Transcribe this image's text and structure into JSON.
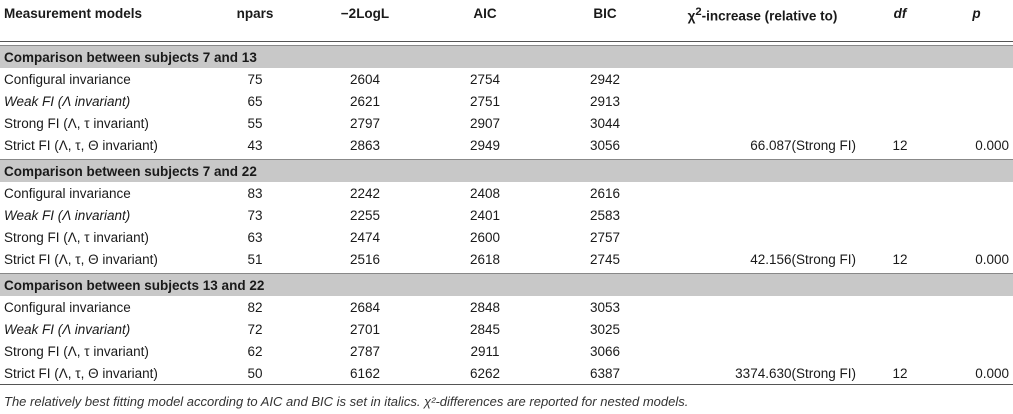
{
  "headers": {
    "model": "Measurement models",
    "npars": "npars",
    "loglik": "−2LogL",
    "aic": "AIC",
    "bic": "BIC",
    "chi_pre": "χ",
    "chi_sup": "2",
    "chi_post": "-increase (relative to)",
    "df": "df",
    "p": "p"
  },
  "groups": [
    {
      "title": "Comparison between subjects 7 and 13",
      "rows": [
        {
          "model": "Configural invariance",
          "npars": "75",
          "loglik": "2604",
          "aic": "2754",
          "bic": "2942",
          "chi": "",
          "df": "",
          "p": ""
        },
        {
          "model": "Weak FI (Λ invariant)",
          "npars": "65",
          "loglik": "2621",
          "aic": "2751",
          "bic": "2913",
          "chi": "",
          "df": "",
          "p": ""
        },
        {
          "model": "Strong FI (Λ, τ invariant)",
          "npars": "55",
          "loglik": "2797",
          "aic": "2907",
          "bic": "3044",
          "chi": "",
          "df": "",
          "p": ""
        },
        {
          "model": "Strict FI (Λ, τ, Θ invariant)",
          "npars": "43",
          "loglik": "2863",
          "aic": "2949",
          "bic": "3056",
          "chi": "66.087(Strong FI)",
          "df": "12",
          "p": "0.000"
        }
      ]
    },
    {
      "title": "Comparison between subjects 7 and 22",
      "rows": [
        {
          "model": "Configural invariance",
          "npars": "83",
          "loglik": "2242",
          "aic": "2408",
          "bic": "2616",
          "chi": "",
          "df": "",
          "p": ""
        },
        {
          "model": "Weak FI (Λ invariant)",
          "npars": "73",
          "loglik": "2255",
          "aic": "2401",
          "bic": "2583",
          "chi": "",
          "df": "",
          "p": ""
        },
        {
          "model": "Strong FI (Λ, τ invariant)",
          "npars": "63",
          "loglik": "2474",
          "aic": "2600",
          "bic": "2757",
          "chi": "",
          "df": "",
          "p": ""
        },
        {
          "model": "Strict FI (Λ, τ, Θ invariant)",
          "npars": "51",
          "loglik": "2516",
          "aic": "2618",
          "bic": "2745",
          "chi": "42.156(Strong FI)",
          "df": "12",
          "p": "0.000"
        }
      ]
    },
    {
      "title": "Comparison between subjects 13 and 22",
      "rows": [
        {
          "model": "Configural invariance",
          "npars": "82",
          "loglik": "2684",
          "aic": "2848",
          "bic": "3053",
          "chi": "",
          "df": "",
          "p": ""
        },
        {
          "model": "Weak FI (Λ invariant)",
          "npars": "72",
          "loglik": "2701",
          "aic": "2845",
          "bic": "3025",
          "chi": "",
          "df": "",
          "p": ""
        },
        {
          "model": "Strong FI (Λ, τ invariant)",
          "npars": "62",
          "loglik": "2787",
          "aic": "2911",
          "bic": "3066",
          "chi": "",
          "df": "",
          "p": ""
        },
        {
          "model": "Strict FI (Λ, τ, Θ invariant)",
          "npars": "50",
          "loglik": "6162",
          "aic": "6262",
          "bic": "6387",
          "chi": "3374.630(Strong FI)",
          "df": "12",
          "p": "0.000"
        }
      ]
    }
  ],
  "footnote": "The relatively best fitting model according to AIC and BIC is set in italics. χ²-differences are reported for nested models."
}
